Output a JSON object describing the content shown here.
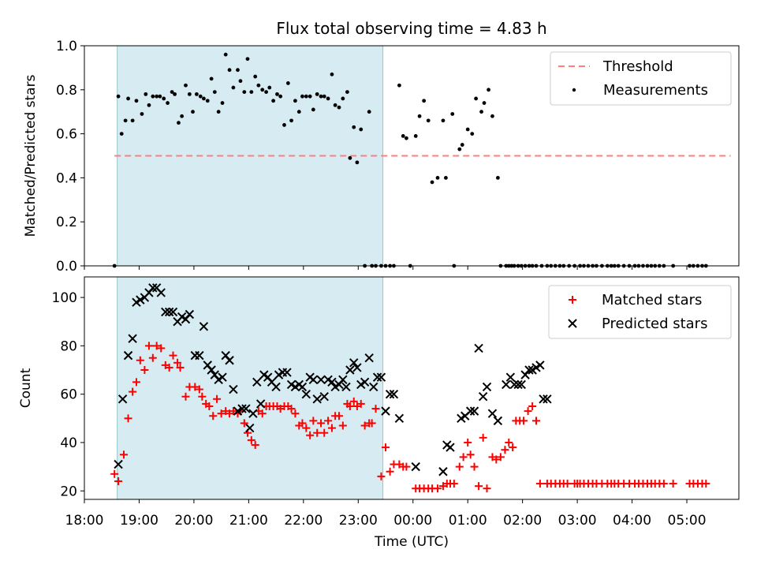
{
  "title": "Flux total observing time = 4.83 h",
  "colors": {
    "shade": "#add8e6",
    "threshold": "#ff7f7f",
    "measurements": "#000000",
    "matched": "#ff0000",
    "predicted": "#000000"
  },
  "chart_data": [
    {
      "type": "scatter",
      "ylabel": "Matched/Predicted stars",
      "ylim": [
        0,
        1.0
      ],
      "xlim_hours": [
        18.0,
        29.95
      ],
      "yticks": [
        "0.0",
        "0.2",
        "0.4",
        "0.6",
        "0.8",
        "1.0"
      ],
      "shaded_span_hours": [
        18.6,
        23.45
      ],
      "legend": {
        "position": "top-right",
        "entries": [
          "Threshold",
          "Measurements"
        ]
      },
      "threshold": {
        "name": "Threshold",
        "value": 0.5,
        "x_range_hours": [
          18.55,
          29.8
        ]
      },
      "series": [
        {
          "name": "Measurements",
          "x_hours": [
            18.55,
            18.62,
            18.68,
            18.75,
            18.8,
            18.88,
            18.95,
            19.05,
            19.12,
            19.18,
            19.25,
            19.32,
            19.38,
            19.45,
            19.52,
            19.6,
            19.65,
            19.72,
            19.78,
            19.85,
            19.92,
            19.98,
            20.05,
            20.12,
            20.18,
            20.25,
            20.32,
            20.38,
            20.45,
            20.52,
            20.58,
            20.65,
            20.72,
            20.8,
            20.85,
            20.92,
            20.98,
            21.05,
            21.12,
            21.18,
            21.25,
            21.32,
            21.38,
            21.45,
            21.52,
            21.58,
            21.65,
            21.72,
            21.78,
            21.85,
            21.92,
            21.98,
            22.05,
            22.12,
            22.18,
            22.25,
            22.32,
            22.38,
            22.45,
            22.52,
            22.58,
            22.65,
            22.72,
            22.8,
            22.85,
            22.92,
            22.98,
            23.05,
            23.12,
            23.2,
            23.25,
            23.32,
            23.42,
            23.5,
            23.58,
            23.65,
            23.75,
            23.82,
            23.88,
            23.95,
            24.05,
            24.12,
            24.2,
            24.28,
            24.35,
            24.45,
            24.55,
            24.6,
            24.72,
            24.75,
            24.85,
            24.9,
            25.0,
            25.08,
            25.15,
            25.25,
            25.3,
            25.38,
            25.45,
            25.55,
            25.6,
            25.7,
            25.75,
            25.8,
            25.85,
            25.92,
            25.98,
            26.05,
            26.12,
            26.18,
            26.25,
            26.35,
            26.45,
            26.52,
            26.6,
            26.68,
            26.75,
            26.85,
            26.95,
            27.05,
            27.12,
            27.2,
            27.28,
            27.35,
            27.45,
            27.55,
            27.62,
            27.68,
            27.75,
            27.85,
            27.95,
            28.05,
            28.12,
            28.2,
            28.28,
            28.35,
            28.42,
            28.5,
            28.58,
            28.75,
            29.05,
            29.12,
            29.2,
            29.28,
            29.35
          ],
          "y": [
            0.0,
            0.77,
            0.6,
            0.66,
            0.76,
            0.66,
            0.75,
            0.69,
            0.78,
            0.73,
            0.77,
            0.77,
            0.77,
            0.76,
            0.74,
            0.79,
            0.78,
            0.65,
            0.68,
            0.82,
            0.78,
            0.7,
            0.78,
            0.77,
            0.76,
            0.75,
            0.85,
            0.79,
            0.7,
            0.74,
            0.96,
            0.89,
            0.81,
            0.89,
            0.84,
            0.79,
            0.94,
            0.79,
            0.86,
            0.82,
            0.8,
            0.79,
            0.81,
            0.75,
            0.78,
            0.77,
            0.64,
            0.83,
            0.66,
            0.75,
            0.7,
            0.77,
            0.77,
            0.77,
            0.71,
            0.78,
            0.77,
            0.77,
            0.76,
            0.87,
            0.73,
            0.72,
            0.76,
            0.79,
            0.49,
            0.63,
            0.47,
            0.62,
            0.0,
            0.7,
            0.0,
            0.0,
            0.0,
            0.0,
            0.0,
            0.0,
            0.82,
            0.59,
            0.58,
            0.0,
            0.59,
            0.68,
            0.75,
            0.66,
            0.38,
            0.4,
            0.66,
            0.4,
            0.69,
            0.0,
            0.53,
            0.55,
            0.62,
            0.6,
            0.76,
            0.7,
            0.74,
            0.8,
            0.68,
            0.4,
            0.0,
            0.0,
            0.0,
            0.0,
            0.0,
            0.0,
            0.0,
            0.0,
            0.0,
            0.0,
            0.0,
            0.0,
            0.0,
            0.0,
            0.0,
            0.0,
            0.0,
            0.0,
            0.0,
            0.0,
            0.0,
            0.0,
            0.0,
            0.0,
            0.0,
            0.0,
            0.0,
            0.0,
            0.0,
            0.0,
            0.0,
            0.0,
            0.0,
            0.0,
            0.0,
            0.0,
            0.0,
            0.0,
            0.0,
            0.0,
            0.0,
            0.0,
            0.0,
            0.0,
            0.0
          ]
        }
      ]
    },
    {
      "type": "scatter",
      "ylabel": "Count",
      "xlabel": "Time (UTC)",
      "ylim": [
        16.5,
        108.5
      ],
      "xlim_hours": [
        18.0,
        29.95
      ],
      "yticks": [
        "20",
        "40",
        "60",
        "80",
        "100"
      ],
      "xticks": [
        {
          "h": 18,
          "label": "18:00"
        },
        {
          "h": 19,
          "label": "19:00"
        },
        {
          "h": 20,
          "label": "20:00"
        },
        {
          "h": 21,
          "label": "21:00"
        },
        {
          "h": 22,
          "label": "22:00"
        },
        {
          "h": 23,
          "label": "23:00"
        },
        {
          "h": 24,
          "label": "00:00"
        },
        {
          "h": 25,
          "label": "01:00"
        },
        {
          "h": 26,
          "label": "02:00"
        },
        {
          "h": 27,
          "label": "03:00"
        },
        {
          "h": 28,
          "label": "04:00"
        },
        {
          "h": 29,
          "label": "05:00"
        }
      ],
      "shaded_span_hours": [
        18.6,
        23.45
      ],
      "legend": {
        "position": "top-right",
        "entries": [
          "Matched stars",
          "Predicted stars"
        ]
      },
      "series": [
        {
          "name": "Matched stars",
          "x_hours": [
            18.55,
            18.62,
            18.72,
            18.8,
            18.88,
            18.95,
            19.02,
            19.1,
            19.18,
            19.25,
            19.32,
            19.4,
            19.48,
            19.55,
            19.62,
            19.7,
            19.75,
            19.85,
            19.92,
            20.02,
            20.1,
            20.15,
            20.22,
            20.28,
            20.35,
            20.42,
            20.5,
            20.58,
            20.65,
            20.72,
            20.8,
            20.85,
            20.92,
            20.98,
            21.05,
            21.12,
            21.18,
            21.25,
            21.32,
            21.38,
            21.45,
            21.52,
            21.58,
            21.65,
            21.72,
            21.78,
            21.85,
            21.92,
            21.98,
            22.05,
            22.12,
            22.18,
            22.25,
            22.32,
            22.38,
            22.45,
            22.52,
            22.58,
            22.65,
            22.72,
            22.8,
            22.85,
            22.92,
            22.98,
            23.05,
            23.12,
            23.2,
            23.25,
            23.32,
            23.42,
            23.5,
            23.58,
            23.65,
            23.75,
            23.82,
            23.88,
            24.05,
            24.12,
            24.2,
            24.28,
            24.35,
            24.45,
            24.55,
            24.62,
            24.68,
            24.75,
            24.85,
            24.92,
            25.0,
            25.05,
            25.12,
            25.2,
            25.28,
            25.35,
            25.45,
            25.52,
            25.6,
            25.68,
            25.75,
            25.82,
            25.88,
            25.95,
            26.02,
            26.1,
            26.18,
            26.25,
            26.32,
            26.45,
            26.52,
            26.6,
            26.68,
            26.75,
            26.82,
            26.95,
            27.0,
            27.05,
            27.12,
            27.2,
            27.28,
            27.35,
            27.45,
            27.55,
            27.62,
            27.68,
            27.75,
            27.85,
            27.95,
            28.05,
            28.12,
            28.2,
            28.28,
            28.35,
            28.42,
            28.5,
            28.58,
            28.75,
            29.05,
            29.12,
            29.2,
            29.28,
            29.35
          ],
          "y": [
            27,
            24,
            35,
            50,
            61,
            65,
            74,
            70,
            80,
            75,
            80,
            79,
            72,
            71,
            76,
            73,
            71,
            59,
            63,
            63,
            62,
            59,
            56,
            55,
            51,
            58,
            52,
            53,
            52,
            53,
            52,
            53,
            48,
            44,
            41,
            39,
            53,
            52,
            55,
            55,
            55,
            55,
            54,
            55,
            55,
            54,
            52,
            47,
            48,
            46,
            43,
            49,
            44,
            48,
            44,
            49,
            46,
            51,
            51,
            47,
            56,
            55,
            57,
            55,
            56,
            47,
            48,
            48,
            54,
            26,
            38,
            28,
            31,
            31,
            30,
            30,
            21,
            21,
            21,
            21,
            21,
            21,
            22,
            23,
            23,
            23,
            30,
            34,
            40,
            35,
            30,
            22,
            42,
            21,
            34,
            33,
            34,
            37,
            40,
            38,
            49,
            49,
            49,
            53,
            55,
            49,
            23,
            23,
            23,
            23,
            23,
            23,
            23,
            23,
            23,
            23,
            23,
            23,
            23,
            23,
            23,
            23,
            23,
            23,
            23,
            23,
            23,
            23,
            23,
            23,
            23,
            23,
            23,
            23,
            23,
            23,
            23,
            23,
            23,
            23,
            23
          ]
        },
        {
          "name": "Predicted stars",
          "x_hours": [
            18.62,
            18.7,
            18.8,
            18.88,
            18.95,
            19.02,
            19.1,
            19.18,
            19.25,
            19.32,
            19.4,
            19.48,
            19.55,
            19.62,
            19.7,
            19.78,
            19.85,
            19.92,
            20.02,
            20.1,
            20.18,
            20.25,
            20.32,
            20.38,
            20.45,
            20.52,
            20.58,
            20.65,
            20.72,
            20.8,
            20.88,
            20.95,
            21.02,
            21.08,
            21.15,
            21.22,
            21.28,
            21.35,
            21.42,
            21.5,
            21.55,
            21.62,
            21.7,
            21.78,
            21.85,
            21.92,
            21.98,
            22.05,
            22.12,
            22.18,
            22.25,
            22.32,
            22.38,
            22.45,
            22.52,
            22.58,
            22.65,
            22.72,
            22.78,
            22.85,
            22.92,
            22.98,
            23.05,
            23.12,
            23.2,
            23.28,
            23.35,
            23.42,
            23.5,
            23.58,
            23.65,
            23.75,
            24.05,
            24.55,
            24.62,
            24.68,
            24.88,
            24.95,
            25.05,
            25.12,
            25.2,
            25.28,
            25.35,
            25.45,
            25.55,
            25.7,
            25.78,
            25.85,
            25.92,
            25.98,
            26.05,
            26.12,
            26.18,
            26.25,
            26.32,
            26.38,
            26.45
          ],
          "y": [
            31,
            58,
            76,
            83,
            98,
            99,
            100,
            102,
            104,
            104,
            102,
            94,
            94,
            94,
            90,
            92,
            91,
            93,
            76,
            76,
            88,
            72,
            70,
            68,
            66,
            67,
            76,
            74,
            62,
            53,
            54,
            54,
            46,
            52,
            65,
            56,
            68,
            67,
            65,
            63,
            68,
            69,
            69,
            64,
            63,
            64,
            63,
            60,
            67,
            66,
            58,
            66,
            59,
            66,
            65,
            63,
            64,
            66,
            63,
            70,
            73,
            71,
            64,
            65,
            75,
            63,
            67,
            67,
            53,
            60,
            60,
            50,
            30,
            28,
            39,
            38,
            50,
            51,
            53,
            53,
            79,
            59,
            63,
            52,
            49,
            64,
            67,
            64,
            64,
            64,
            68,
            70,
            70,
            71,
            72,
            58,
            58
          ]
        }
      ]
    }
  ]
}
